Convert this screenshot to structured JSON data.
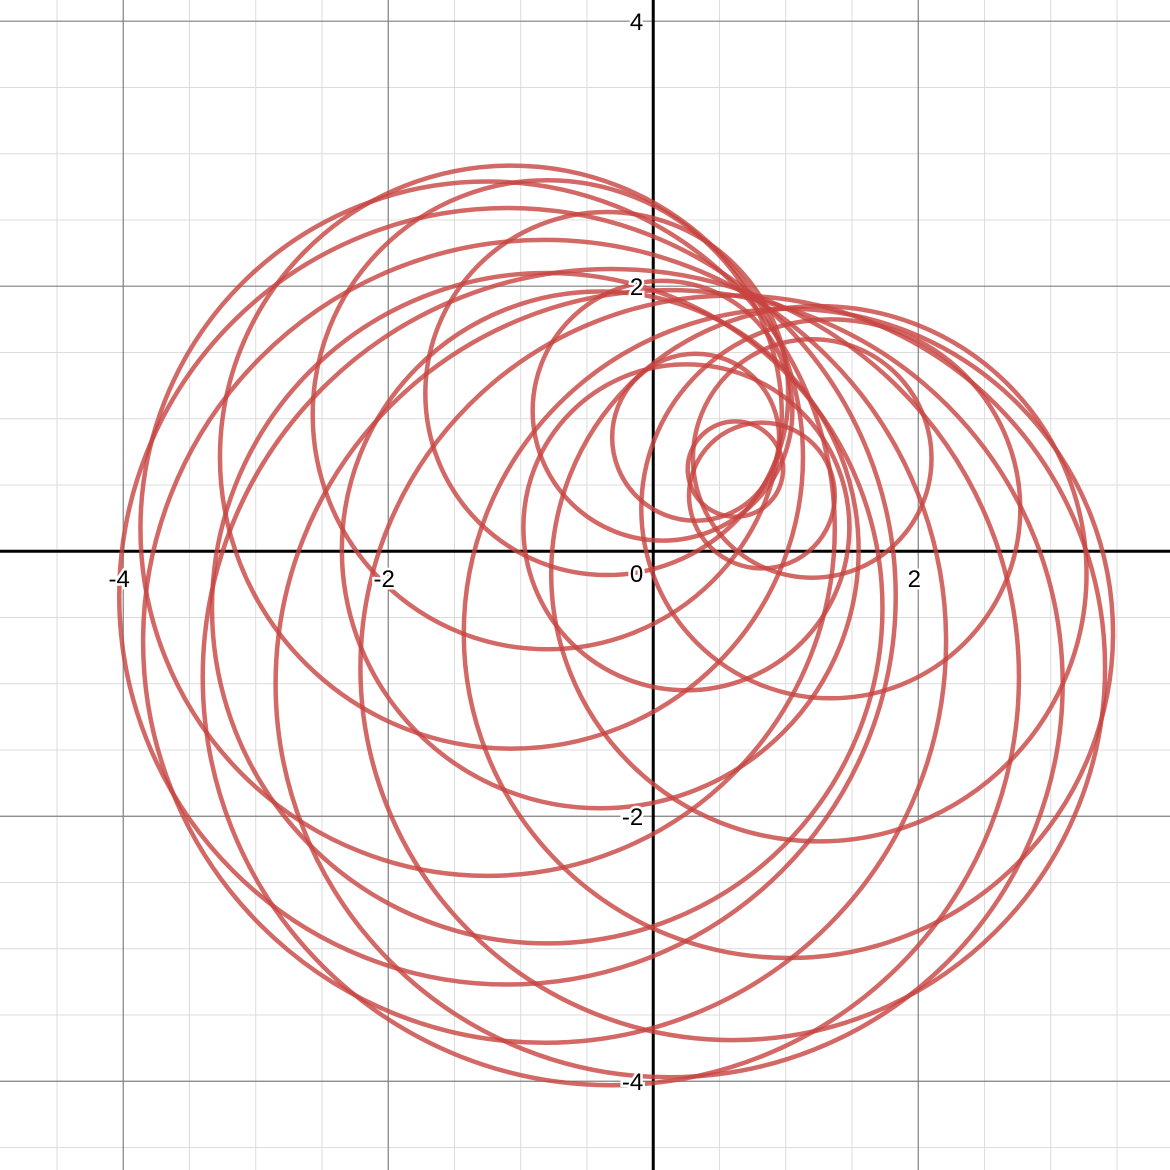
{
  "chart_data": {
    "type": "line",
    "title": "",
    "xlabel": "",
    "ylabel": "",
    "xlim": [
      -4.93,
      3.9
    ],
    "ylim": [
      -4.67,
      4.16
    ],
    "grid": true,
    "major_grid_step": 2,
    "minor_grid_step": 0.5,
    "x_ticks": [
      {
        "value": -4,
        "label": "-4"
      },
      {
        "value": -2,
        "label": "-2"
      },
      {
        "value": 0,
        "label": "0"
      },
      {
        "value": 2,
        "label": "2"
      }
    ],
    "y_ticks": [
      {
        "value": 4,
        "label": "4"
      },
      {
        "value": 2,
        "label": "2"
      },
      {
        "value": -2,
        "label": "-2"
      },
      {
        "value": -4,
        "label": "-4"
      }
    ],
    "series": [
      {
        "color": "#c74440",
        "circles": [
          {
            "cx": 0.62,
            "cy": 0.62,
            "r": 0.36
          },
          {
            "cx": 0.32,
            "cy": 0.86,
            "r": 0.63
          },
          {
            "cx": 0.07,
            "cy": 1.06,
            "r": 0.98
          },
          {
            "cx": -0.35,
            "cy": 1.19,
            "r": 1.37
          },
          {
            "cx": -0.8,
            "cy": 1.03,
            "r": 1.77
          },
          {
            "cx": -1.07,
            "cy": 0.71,
            "r": 2.2
          },
          {
            "cx": -1.25,
            "cy": 0.17,
            "r": 2.62
          },
          {
            "cx": -1.1,
            "cy": -0.34,
            "r": 2.93
          },
          {
            "cx": -0.82,
            "cy": -0.68,
            "r": 3.03
          },
          {
            "cx": -0.32,
            "cy": -0.95,
            "r": 3.08
          },
          {
            "cx": 0.12,
            "cy": -1.0,
            "r": 2.97
          },
          {
            "cx": 0.6,
            "cy": -0.88,
            "r": 2.81
          },
          {
            "cx": 1.02,
            "cy": -0.62,
            "r": 2.45
          },
          {
            "cx": 1.25,
            "cy": -0.17,
            "r": 2.02
          },
          {
            "cx": 1.34,
            "cy": 0.32,
            "r": 1.43
          },
          {
            "cx": 1.2,
            "cy": 0.7,
            "r": 0.9
          },
          {
            "cx": 0.82,
            "cy": 0.42,
            "r": 0.55
          },
          {
            "cx": 0.25,
            "cy": 0.18,
            "r": 1.23
          },
          {
            "cx": -0.4,
            "cy": 0.01,
            "r": 1.95
          },
          {
            "cx": -0.8,
            "cy": -0.43,
            "r": 2.53
          }
        ]
      }
    ]
  }
}
